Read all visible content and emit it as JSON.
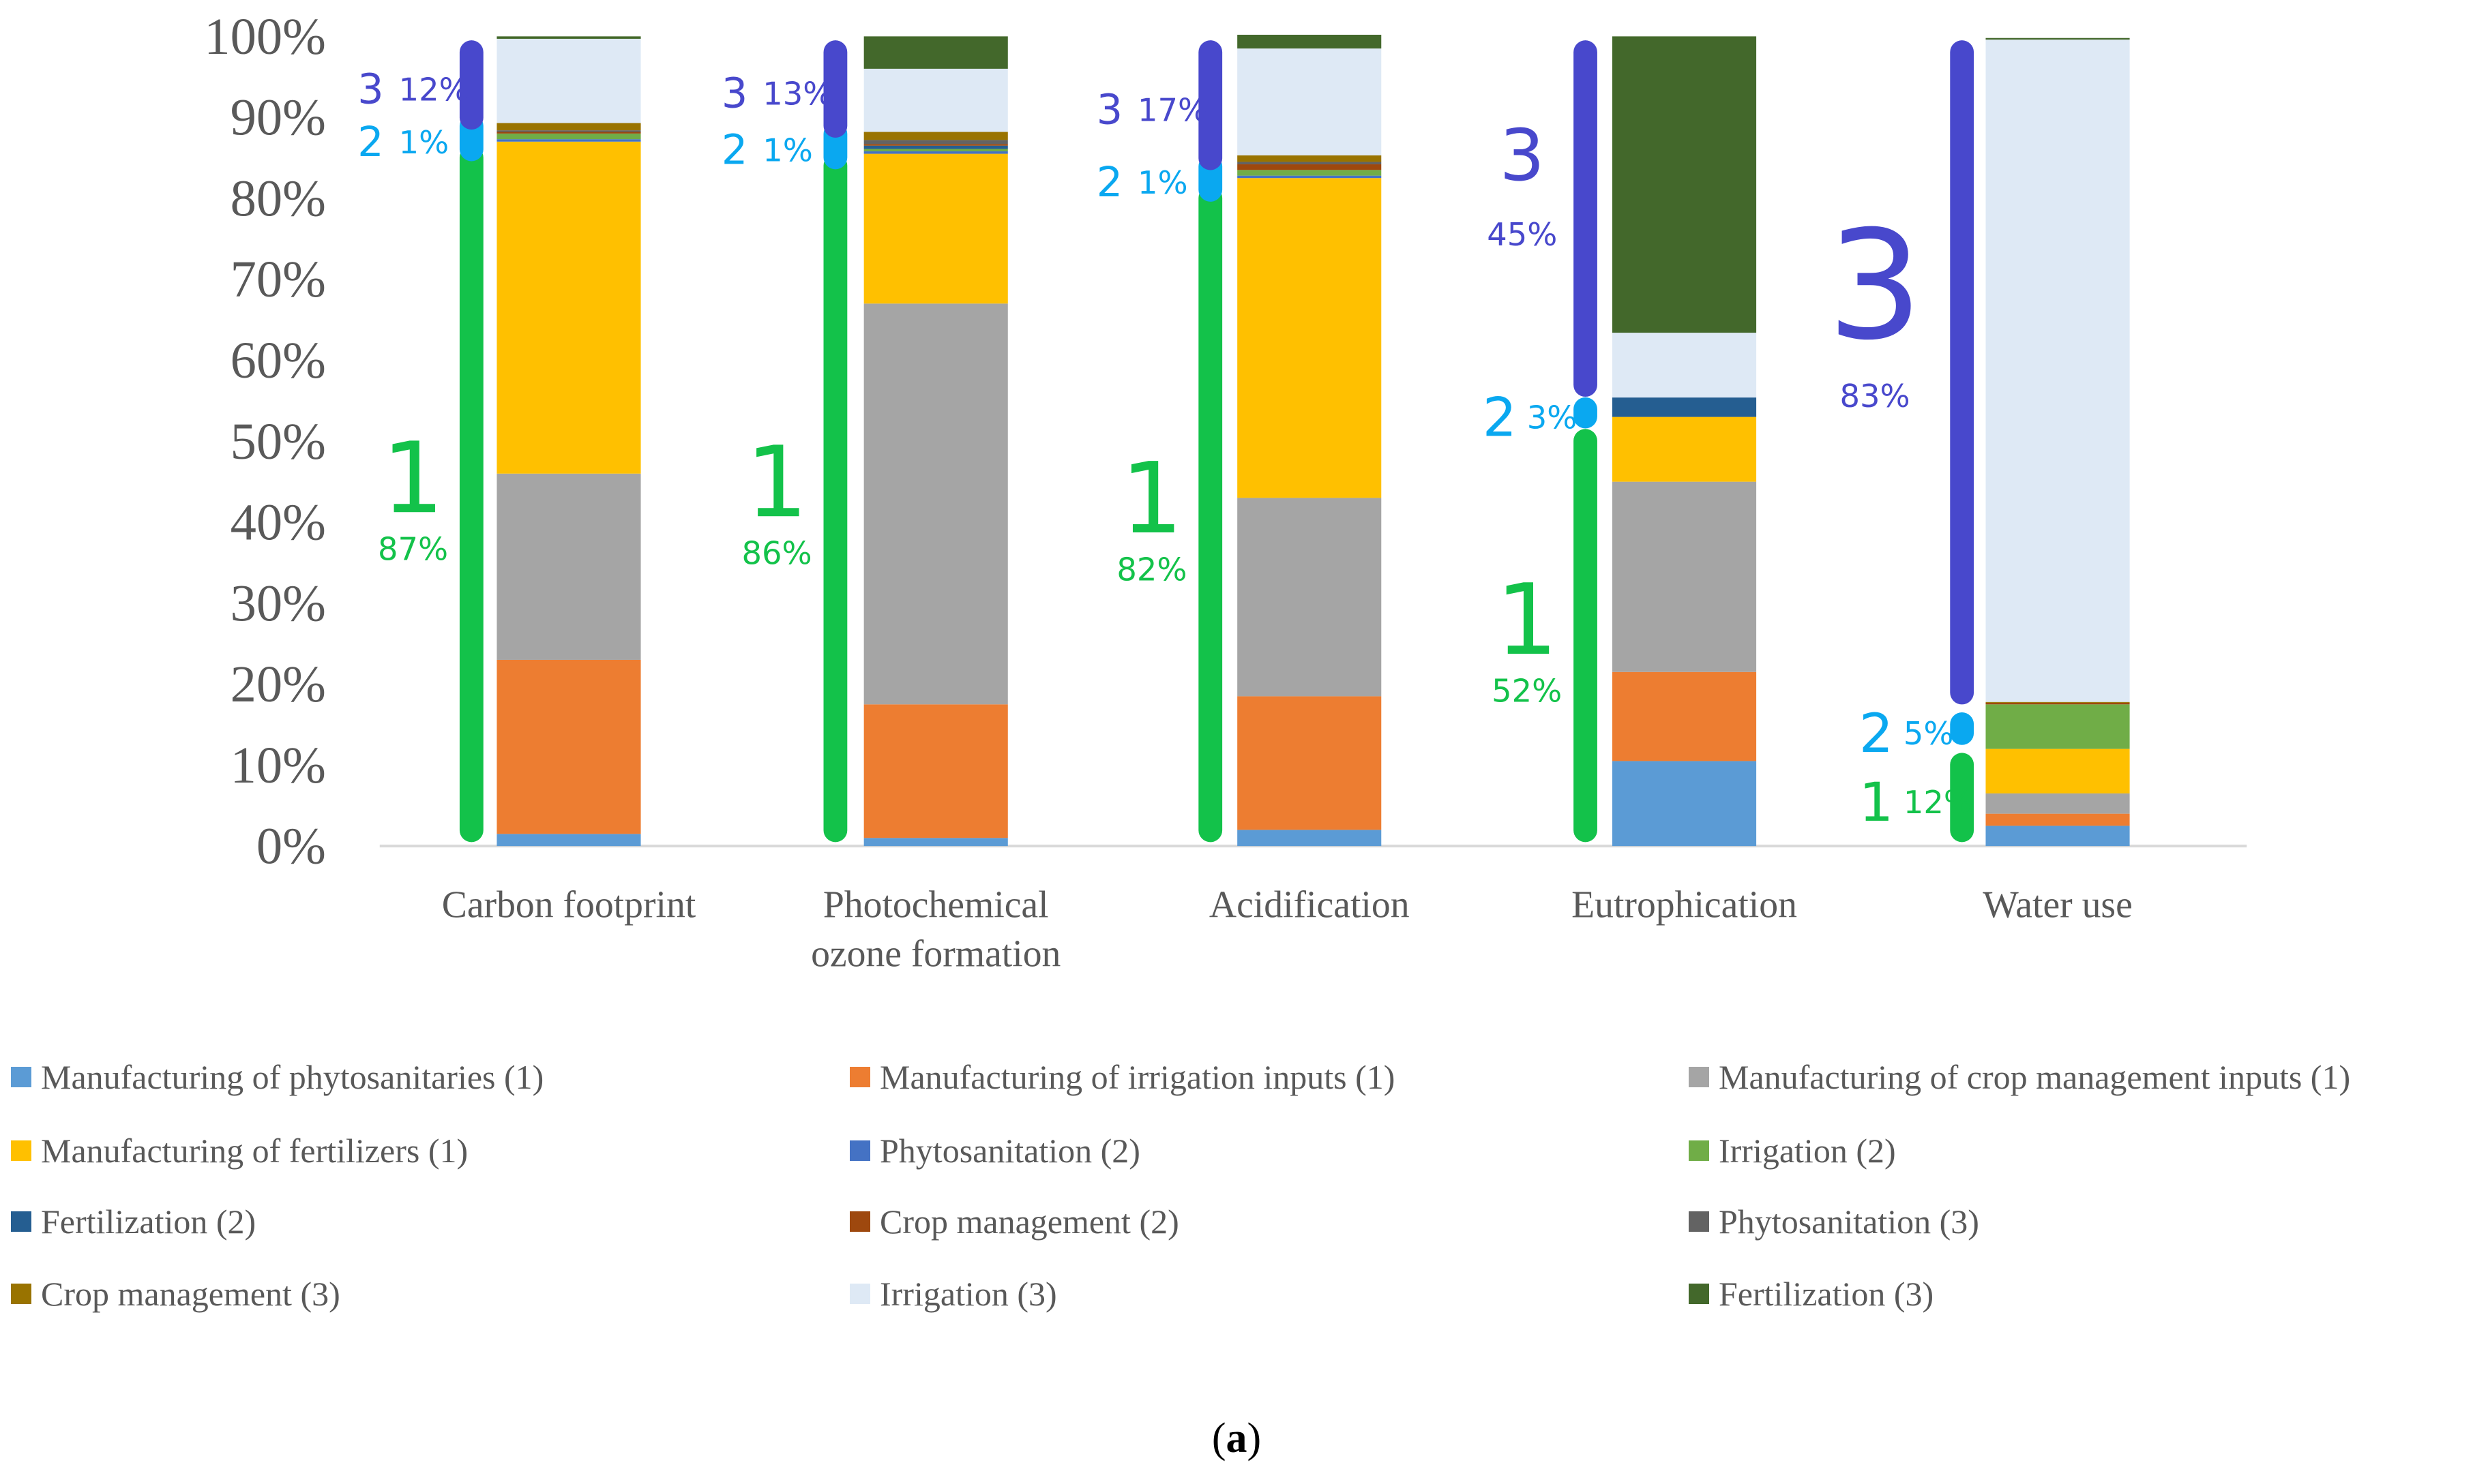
{
  "chart_data": {
    "type": "stacked-bar",
    "title": "",
    "xlabel": "",
    "ylabel": "",
    "ylim": [
      0,
      100
    ],
    "yticks": [
      "0%",
      "10%",
      "20%",
      "30%",
      "40%",
      "50%",
      "60%",
      "70%",
      "80%",
      "90%",
      "100%"
    ],
    "categories": [
      [
        "Carbon footprint"
      ],
      [
        "Photochemical",
        "ozone formation"
      ],
      [
        "Acidification"
      ],
      [
        "Eutrophication"
      ],
      [
        "Water use"
      ]
    ],
    "series": [
      {
        "name": "Manufacturing of phytosanitaries (1)",
        "color": "#5b9bd5",
        "values": [
          1.5,
          1,
          2,
          10.5,
          2.5
        ]
      },
      {
        "name": "Manufacturing of irrigation inputs (1)",
        "color": "#ed7d31",
        "values": [
          21.5,
          16.5,
          16.5,
          11,
          1.5
        ]
      },
      {
        "name": "Manufacturing of crop management inputs (1)",
        "color": "#a5a5a5",
        "values": [
          23,
          49.5,
          24.5,
          23.5,
          2.5
        ]
      },
      {
        "name": "Manufacturing of fertilizers (1)",
        "color": "#ffc000",
        "values": [
          41,
          18.5,
          39.5,
          8,
          5.5
        ]
      },
      {
        "name": "Phytosanitation (2)",
        "color": "#4472c4",
        "values": [
          0.3,
          0.3,
          0.3,
          0,
          0
        ]
      },
      {
        "name": "Irrigation (2)",
        "color": "#70ad47",
        "values": [
          0.7,
          0.3,
          0.7,
          0,
          5.5
        ]
      },
      {
        "name": "Fertilization (2)",
        "color": "#255e91",
        "values": [
          0,
          0.4,
          0,
          2.4,
          0
        ]
      },
      {
        "name": "Crop management (2)",
        "color": "#9e480e",
        "values": [
          0.2,
          0.2,
          0.7,
          0,
          0.2
        ]
      },
      {
        "name": "Phytosanitation (3)",
        "color": "#636363",
        "values": [
          0.2,
          0.5,
          0.3,
          0,
          0
        ]
      },
      {
        "name": "Crop management  (3)",
        "color": "#997300",
        "values": [
          0.9,
          1,
          0.8,
          0,
          0.1
        ]
      },
      {
        "name": "Irrigation (3)",
        "color": "#dee9f5",
        "values": [
          10.4,
          7.8,
          13.2,
          8,
          81.8
        ]
      },
      {
        "name": "Fertilization (3)",
        "color": "#43682b",
        "values": [
          0.3,
          4,
          1.7,
          36.6,
          0.2
        ]
      }
    ],
    "annotations": [
      [
        {
          "group": "1",
          "percent": "87%",
          "from": 0,
          "to": 87
        },
        {
          "group": "2",
          "percent": "1%",
          "from": 87,
          "to": 88
        },
        {
          "group": "3",
          "percent": "12%",
          "from": 88,
          "to": 100
        }
      ],
      [
        {
          "group": "1",
          "percent": "86%",
          "from": 0,
          "to": 86
        },
        {
          "group": "2",
          "percent": "1%",
          "from": 86,
          "to": 87
        },
        {
          "group": "3",
          "percent": "13%",
          "from": 87,
          "to": 100
        }
      ],
      [
        {
          "group": "1",
          "percent": "82%",
          "from": 0,
          "to": 82
        },
        {
          "group": "2",
          "percent": "1%",
          "from": 82,
          "to": 83
        },
        {
          "group": "3",
          "percent": "17%",
          "from": 83,
          "to": 100
        }
      ],
      [
        {
          "group": "1",
          "percent": "52%",
          "from": 0,
          "to": 52
        },
        {
          "group": "2",
          "percent": "3%",
          "from": 52,
          "to": 55
        },
        {
          "group": "3",
          "percent": "45%",
          "from": 55,
          "to": 100
        }
      ],
      [
        {
          "group": "1",
          "percent": "12%",
          "from": 0,
          "to": 12
        },
        {
          "group": "2",
          "percent": "5%",
          "from": 12,
          "to": 17
        },
        {
          "group": "3",
          "percent": "83%",
          "from": 17,
          "to": 100
        }
      ]
    ],
    "group_colors": {
      "1": "#13c24a",
      "2": "#0aa8f0",
      "3": "#4848cc"
    }
  },
  "caption": {
    "open": "(",
    "label": "a",
    "close": ")"
  }
}
